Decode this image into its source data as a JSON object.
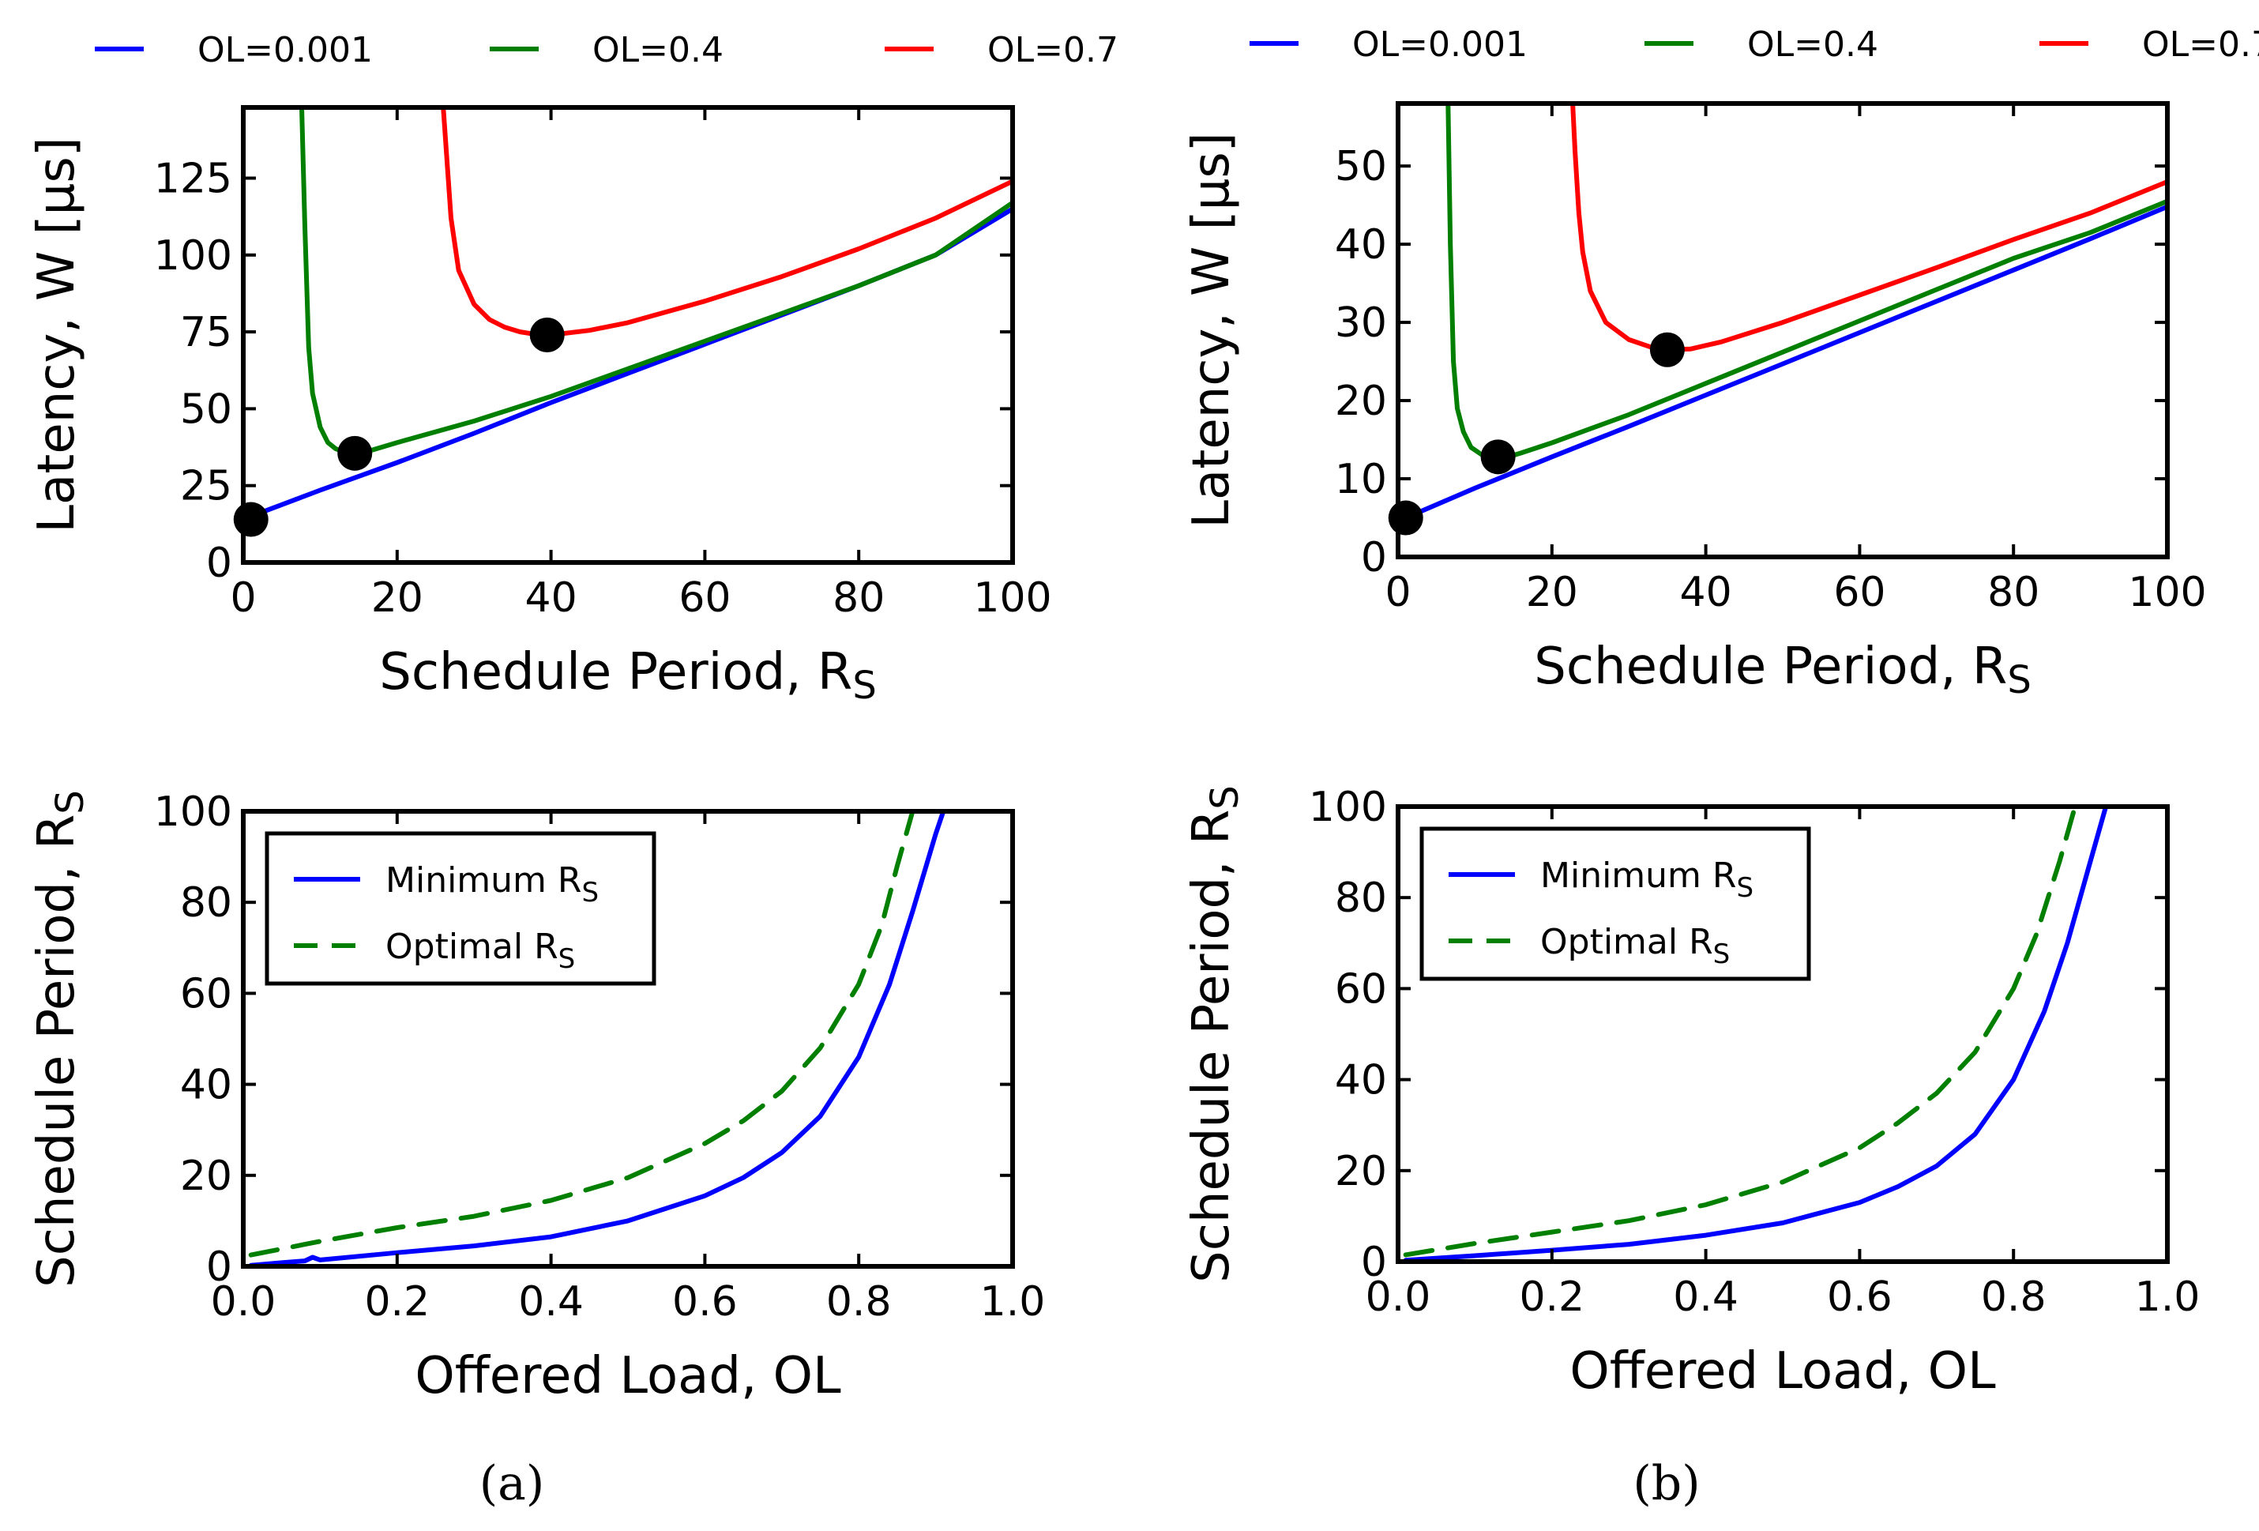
{
  "captions": [
    "(a)",
    "(b)"
  ],
  "colors": {
    "blue": "#0000ff",
    "green": "#007f00",
    "red": "#ff0000"
  },
  "chart_data": [
    {
      "type": "line",
      "panel": "(a) top",
      "xlabel": "Schedule Period, R",
      "xlabel_sub": "S",
      "ylabel": "Latency, W [µs]",
      "xlim": [
        0,
        100
      ],
      "ylim": [
        0,
        148
      ],
      "xticks": [
        "0",
        "20",
        "40",
        "60",
        "80",
        "100"
      ],
      "yticks": [
        "0",
        "25",
        "50",
        "75",
        "100",
        "125"
      ],
      "xtick_values": [
        0,
        20,
        40,
        60,
        80,
        100
      ],
      "ytick_values": [
        0,
        25,
        50,
        75,
        100,
        125
      ],
      "legend_position": "top (outside, above axes)",
      "legend": [
        "OL=0.001",
        "OL=0.4",
        "OL=0.7"
      ],
      "series": [
        {
          "name": "OL=0.001",
          "color": "#0000ff",
          "x": [
            1,
            10,
            20,
            30,
            40,
            50,
            60,
            70,
            80,
            90,
            100
          ],
          "y": [
            15,
            23.5,
            32.5,
            42,
            52,
            61.5,
            71,
            80.5,
            90,
            100,
            115
          ]
        },
        {
          "name": "OL=0.4",
          "color": "#007f00",
          "x": [
            7.6,
            8,
            8.5,
            9,
            10,
            11,
            12,
            13,
            14.5,
            16,
            20,
            30,
            40,
            50,
            60,
            70,
            80,
            90,
            100
          ],
          "y": [
            148,
            110,
            70,
            55,
            44,
            39,
            37,
            36,
            35.5,
            36,
            39,
            46,
            54,
            63,
            72,
            81,
            90,
            100,
            117
          ]
        },
        {
          "name": "OL=0.7",
          "color": "#ff0000",
          "x": [
            26,
            26.5,
            27,
            28,
            30,
            32,
            34,
            36,
            38,
            40,
            45,
            50,
            60,
            70,
            80,
            90,
            100
          ],
          "y": [
            148,
            130,
            112,
            95,
            84,
            79,
            76.5,
            75,
            74.2,
            74,
            75.5,
            78,
            85,
            93,
            102,
            112,
            124
          ]
        }
      ],
      "markers": {
        "x": [
          1,
          14.5,
          39.5
        ],
        "y": [
          14,
          35.5,
          74
        ]
      }
    },
    {
      "type": "line",
      "panel": "(b) top",
      "xlabel": "Schedule Period, R",
      "xlabel_sub": "S",
      "ylabel": "Latency, W [µs]",
      "xlim": [
        0,
        100
      ],
      "ylim": [
        0,
        58
      ],
      "xticks": [
        "0",
        "20",
        "40",
        "60",
        "80",
        "100"
      ],
      "yticks": [
        "0",
        "10",
        "20",
        "30",
        "40",
        "50"
      ],
      "xtick_values": [
        0,
        20,
        40,
        60,
        80,
        100
      ],
      "ytick_values": [
        0,
        10,
        20,
        30,
        40,
        50
      ],
      "legend_position": "top (outside, above axes)",
      "legend": [
        "OL=0.001",
        "OL=0.4",
        "OL=0.7"
      ],
      "series": [
        {
          "name": "OL=0.001",
          "color": "#0000ff",
          "x": [
            1,
            10,
            20,
            30,
            40,
            50,
            60,
            70,
            80,
            90,
            100
          ],
          "y": [
            5,
            8.8,
            12.8,
            16.7,
            20.7,
            24.7,
            28.7,
            32.7,
            36.7,
            40.7,
            44.8
          ]
        },
        {
          "name": "OL=0.4",
          "color": "#007f00",
          "x": [
            6.5,
            6.8,
            7.2,
            7.7,
            8.5,
            9.5,
            11,
            12.5,
            14,
            16,
            20,
            30,
            40,
            50,
            60,
            70,
            80,
            90,
            100
          ],
          "y": [
            58,
            40,
            25,
            19,
            16,
            14,
            13,
            12.6,
            12.7,
            13.3,
            14.6,
            18.2,
            22.2,
            26.2,
            30.2,
            34.2,
            38.2,
            41.5,
            45.5
          ]
        },
        {
          "name": "OL=0.7",
          "color": "#ff0000",
          "x": [
            22.7,
            23,
            23.5,
            24,
            25,
            27,
            30,
            33,
            35,
            38,
            42,
            50,
            60,
            70,
            80,
            90,
            100
          ],
          "y": [
            58,
            52,
            44,
            39,
            34,
            30,
            27.8,
            26.8,
            26.5,
            26.6,
            27.5,
            30,
            33.5,
            37,
            40.6,
            44,
            48
          ]
        }
      ],
      "markers": {
        "x": [
          1,
          13,
          35
        ],
        "y": [
          5,
          12.8,
          26.5
        ]
      }
    },
    {
      "type": "line",
      "panel": "(a) bottom",
      "xlabel": "Offered Load, OL",
      "ylabel": "Schedule Period, R",
      "ylabel_sub": "S",
      "xlim": [
        0.0,
        1.0
      ],
      "ylim": [
        0,
        100
      ],
      "xticks": [
        "0.0",
        "0.2",
        "0.4",
        "0.6",
        "0.8",
        "1.0"
      ],
      "yticks": [
        "0",
        "20",
        "40",
        "60",
        "80",
        "100"
      ],
      "xtick_values": [
        0,
        0.2,
        0.4,
        0.6,
        0.8,
        1.0
      ],
      "ytick_values": [
        0,
        20,
        40,
        60,
        80,
        100
      ],
      "legend_position": "upper left (inside)",
      "legend": [
        "Minimum R",
        "Optimal R"
      ],
      "legend_sub": "S",
      "series": [
        {
          "name": "Minimum R_S",
          "color": "#0000ff",
          "style": "solid",
          "x": [
            0.01,
            0.05,
            0.08,
            0.09,
            0.1,
            0.2,
            0.3,
            0.4,
            0.5,
            0.6,
            0.65,
            0.7,
            0.75,
            0.8,
            0.84,
            0.87,
            0.9,
            0.91
          ],
          "y": [
            0.2,
            0.8,
            1.2,
            2,
            1.4,
            3,
            4.5,
            6.5,
            10,
            15.5,
            19.5,
            25,
            33,
            46,
            62,
            78,
            95,
            100
          ]
        },
        {
          "name": "Optimal R_S",
          "color": "#007f00",
          "style": "dashed",
          "x": [
            0.01,
            0.1,
            0.2,
            0.3,
            0.4,
            0.5,
            0.6,
            0.65,
            0.7,
            0.75,
            0.8,
            0.83,
            0.85,
            0.87
          ],
          "y": [
            2.5,
            5.5,
            8.5,
            11,
            14.5,
            19.5,
            27,
            32,
            38.5,
            48,
            62,
            75,
            88,
            100
          ]
        }
      ]
    },
    {
      "type": "line",
      "panel": "(b) bottom",
      "xlabel": "Offered Load, OL",
      "ylabel": "Schedule Period, R",
      "ylabel_sub": "S",
      "xlim": [
        0.0,
        1.0
      ],
      "ylim": [
        0,
        100
      ],
      "xticks": [
        "0.0",
        "0.2",
        "0.4",
        "0.6",
        "0.8",
        "1.0"
      ],
      "yticks": [
        "0",
        "20",
        "40",
        "60",
        "80",
        "100"
      ],
      "xtick_values": [
        0,
        0.2,
        0.4,
        0.6,
        0.8,
        1.0
      ],
      "ytick_values": [
        0,
        20,
        40,
        60,
        80,
        100
      ],
      "legend_position": "upper left (inside)",
      "legend": [
        "Minimum R",
        "Optimal R"
      ],
      "legend_sub": "S",
      "series": [
        {
          "name": "Minimum R_S",
          "color": "#0000ff",
          "style": "solid",
          "x": [
            0.01,
            0.1,
            0.2,
            0.3,
            0.4,
            0.5,
            0.6,
            0.65,
            0.7,
            0.75,
            0.8,
            0.84,
            0.87,
            0.9,
            0.92
          ],
          "y": [
            0.3,
            1.3,
            2.5,
            3.8,
            5.8,
            8.5,
            13,
            16.5,
            21,
            28,
            40,
            55,
            70,
            88,
            100
          ]
        },
        {
          "name": "Optimal R_S",
          "color": "#007f00",
          "style": "dashed",
          "x": [
            0.01,
            0.1,
            0.2,
            0.3,
            0.4,
            0.5,
            0.6,
            0.65,
            0.7,
            0.75,
            0.8,
            0.83,
            0.86,
            0.88
          ],
          "y": [
            1.5,
            4,
            6.5,
            9,
            12.5,
            17.5,
            25,
            30.5,
            37,
            46,
            60,
            72,
            88,
            100
          ]
        }
      ]
    }
  ]
}
